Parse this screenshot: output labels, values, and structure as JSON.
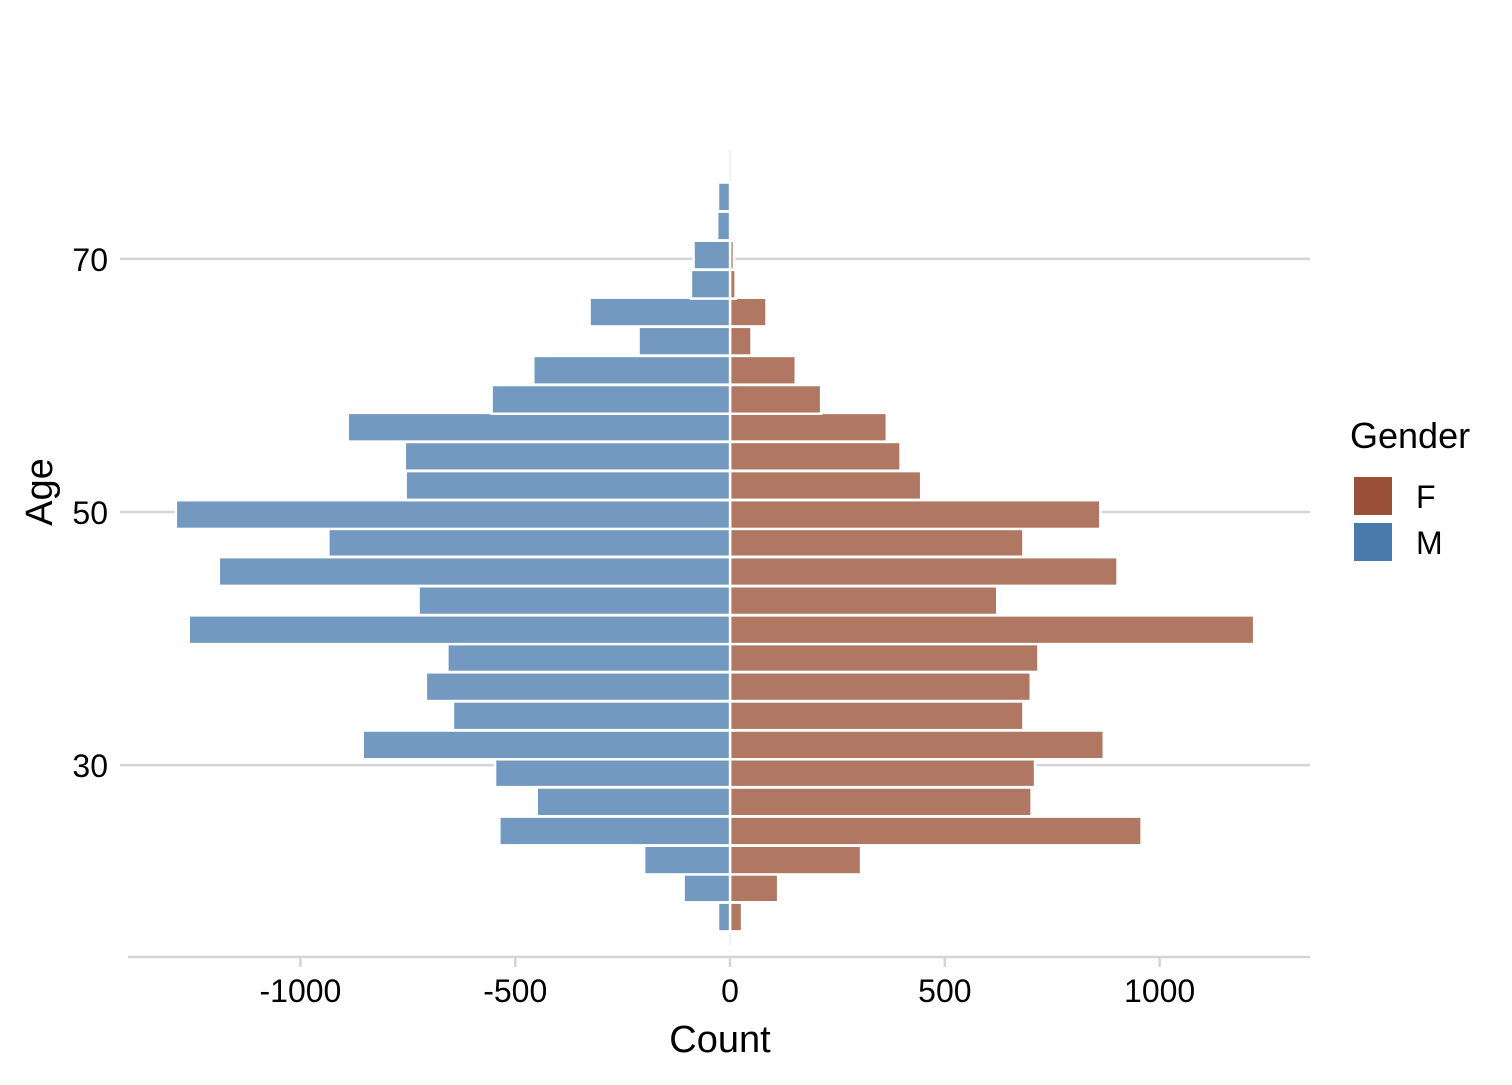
{
  "chart_data": {
    "type": "bar",
    "orientation": "horizontal",
    "title": "",
    "xlabel": "Count",
    "ylabel": "Age",
    "xlim": [
      -1420,
      1350
    ],
    "ylim": [
      15.0,
      79.0
    ],
    "x_ticks": [
      -1000,
      -500,
      0,
      500,
      1000
    ],
    "x_tick_labels": [
      "-1000",
      "-500",
      "0",
      "500",
      "1000"
    ],
    "y_ticks": [
      30,
      50,
      70
    ],
    "y_tick_labels": [
      "30",
      "50",
      "70"
    ],
    "bin_width": 2.27,
    "grid": "horizontal major",
    "legend": {
      "title": "Gender",
      "position": "right",
      "entries": [
        {
          "label": "F",
          "color": "#9a4f39"
        },
        {
          "label": "M",
          "color": "#4a7aae"
        }
      ]
    },
    "colors": {
      "F": "#b07762",
      "M": "#7399c1",
      "grid": "#d4d4d4"
    },
    "bins": [
      18.0,
      20.3,
      22.5,
      24.8,
      27.1,
      29.4,
      31.6,
      33.9,
      36.2,
      38.5,
      40.7,
      43.0,
      45.3,
      47.6,
      49.8,
      52.1,
      54.4,
      56.7,
      58.9,
      61.2,
      63.5,
      65.8,
      68.0,
      70.3,
      72.6,
      74.9
    ],
    "series": [
      {
        "name": "F",
        "values": [
          28,
          112,
          305,
          958,
          702,
          710,
          870,
          683,
          700,
          718,
          1220,
          622,
          902,
          683,
          862,
          445,
          397,
          365,
          212,
          153,
          50,
          85,
          13,
          9,
          0,
          5
        ]
      },
      {
        "name": "M",
        "values": [
          -28,
          -108,
          -200,
          -537,
          -450,
          -547,
          -855,
          -645,
          -708,
          -658,
          -1260,
          -725,
          -1190,
          -935,
          -1290,
          -755,
          -757,
          -890,
          -555,
          -458,
          -213,
          -327,
          -91,
          -85,
          -30,
          -28
        ]
      }
    ]
  }
}
